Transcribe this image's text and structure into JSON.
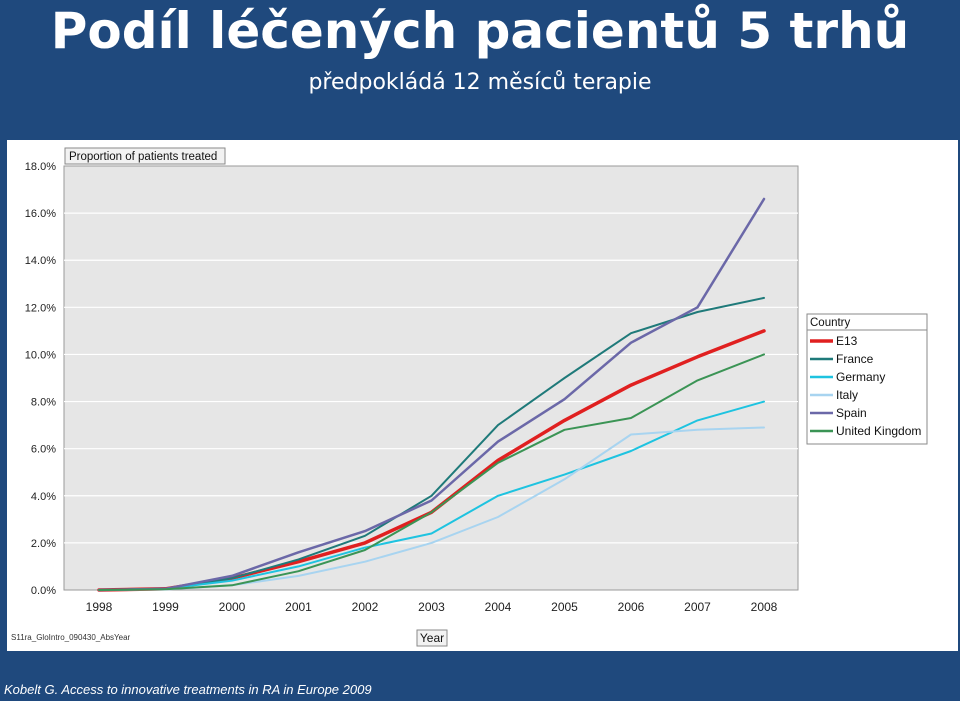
{
  "header": {
    "title": "Podíl léčených pacientů 5 trhů",
    "subtitle": "předpokládá 12 měsíců terapie"
  },
  "footer": {
    "citation": "Kobelt G. Access to innovative treatments in RA in Europe 2009"
  },
  "chart_data": {
    "type": "line",
    "title": "Proportion of patients treated",
    "xlabel": "Year",
    "ylabel": "",
    "source_note": "S11ra_GloIntro_090430_AbsYear",
    "x": [
      "1998",
      "1999",
      "2000",
      "2001",
      "2002",
      "2003",
      "2004",
      "2005",
      "2006",
      "2007",
      "2008"
    ],
    "ylim": [
      0,
      18
    ],
    "yticks": [
      "0.0%",
      "2.0%",
      "4.0%",
      "6.0%",
      "8.0%",
      "10.0%",
      "12.0%",
      "14.0%",
      "16.0%",
      "18.0%"
    ],
    "grid": true,
    "legend": {
      "title": "Country",
      "placement": "right"
    },
    "series": [
      {
        "name": "E13",
        "color": "#e02020",
        "width": 3.5,
        "values": [
          0,
          0.05,
          0.5,
          1.2,
          2.0,
          3.3,
          5.5,
          7.2,
          8.7,
          9.9,
          11.0
        ]
      },
      {
        "name": "France",
        "color": "#1f7a7a",
        "width": 2,
        "values": [
          0,
          0.05,
          0.5,
          1.3,
          2.3,
          4.0,
          7.0,
          9.0,
          10.9,
          11.8,
          12.4
        ]
      },
      {
        "name": "Germany",
        "color": "#1ec3e0",
        "width": 2,
        "values": [
          0,
          0.05,
          0.4,
          1.0,
          1.8,
          2.4,
          4.0,
          4.9,
          5.9,
          7.2,
          8.0
        ]
      },
      {
        "name": "Italy",
        "color": "#a8d4f0",
        "width": 2,
        "values": [
          0,
          0.02,
          0.2,
          0.6,
          1.2,
          2.0,
          3.1,
          4.7,
          6.6,
          6.8,
          6.9
        ]
      },
      {
        "name": "Spain",
        "color": "#6b68a8",
        "width": 2.5,
        "values": [
          0,
          0.05,
          0.6,
          1.6,
          2.5,
          3.8,
          6.3,
          8.1,
          10.5,
          12.0,
          16.6
        ]
      },
      {
        "name": "United Kingdom",
        "color": "#3b9455",
        "width": 2,
        "values": [
          0,
          0.03,
          0.2,
          0.8,
          1.7,
          3.3,
          5.4,
          6.8,
          7.3,
          8.9,
          10.0
        ]
      }
    ]
  }
}
